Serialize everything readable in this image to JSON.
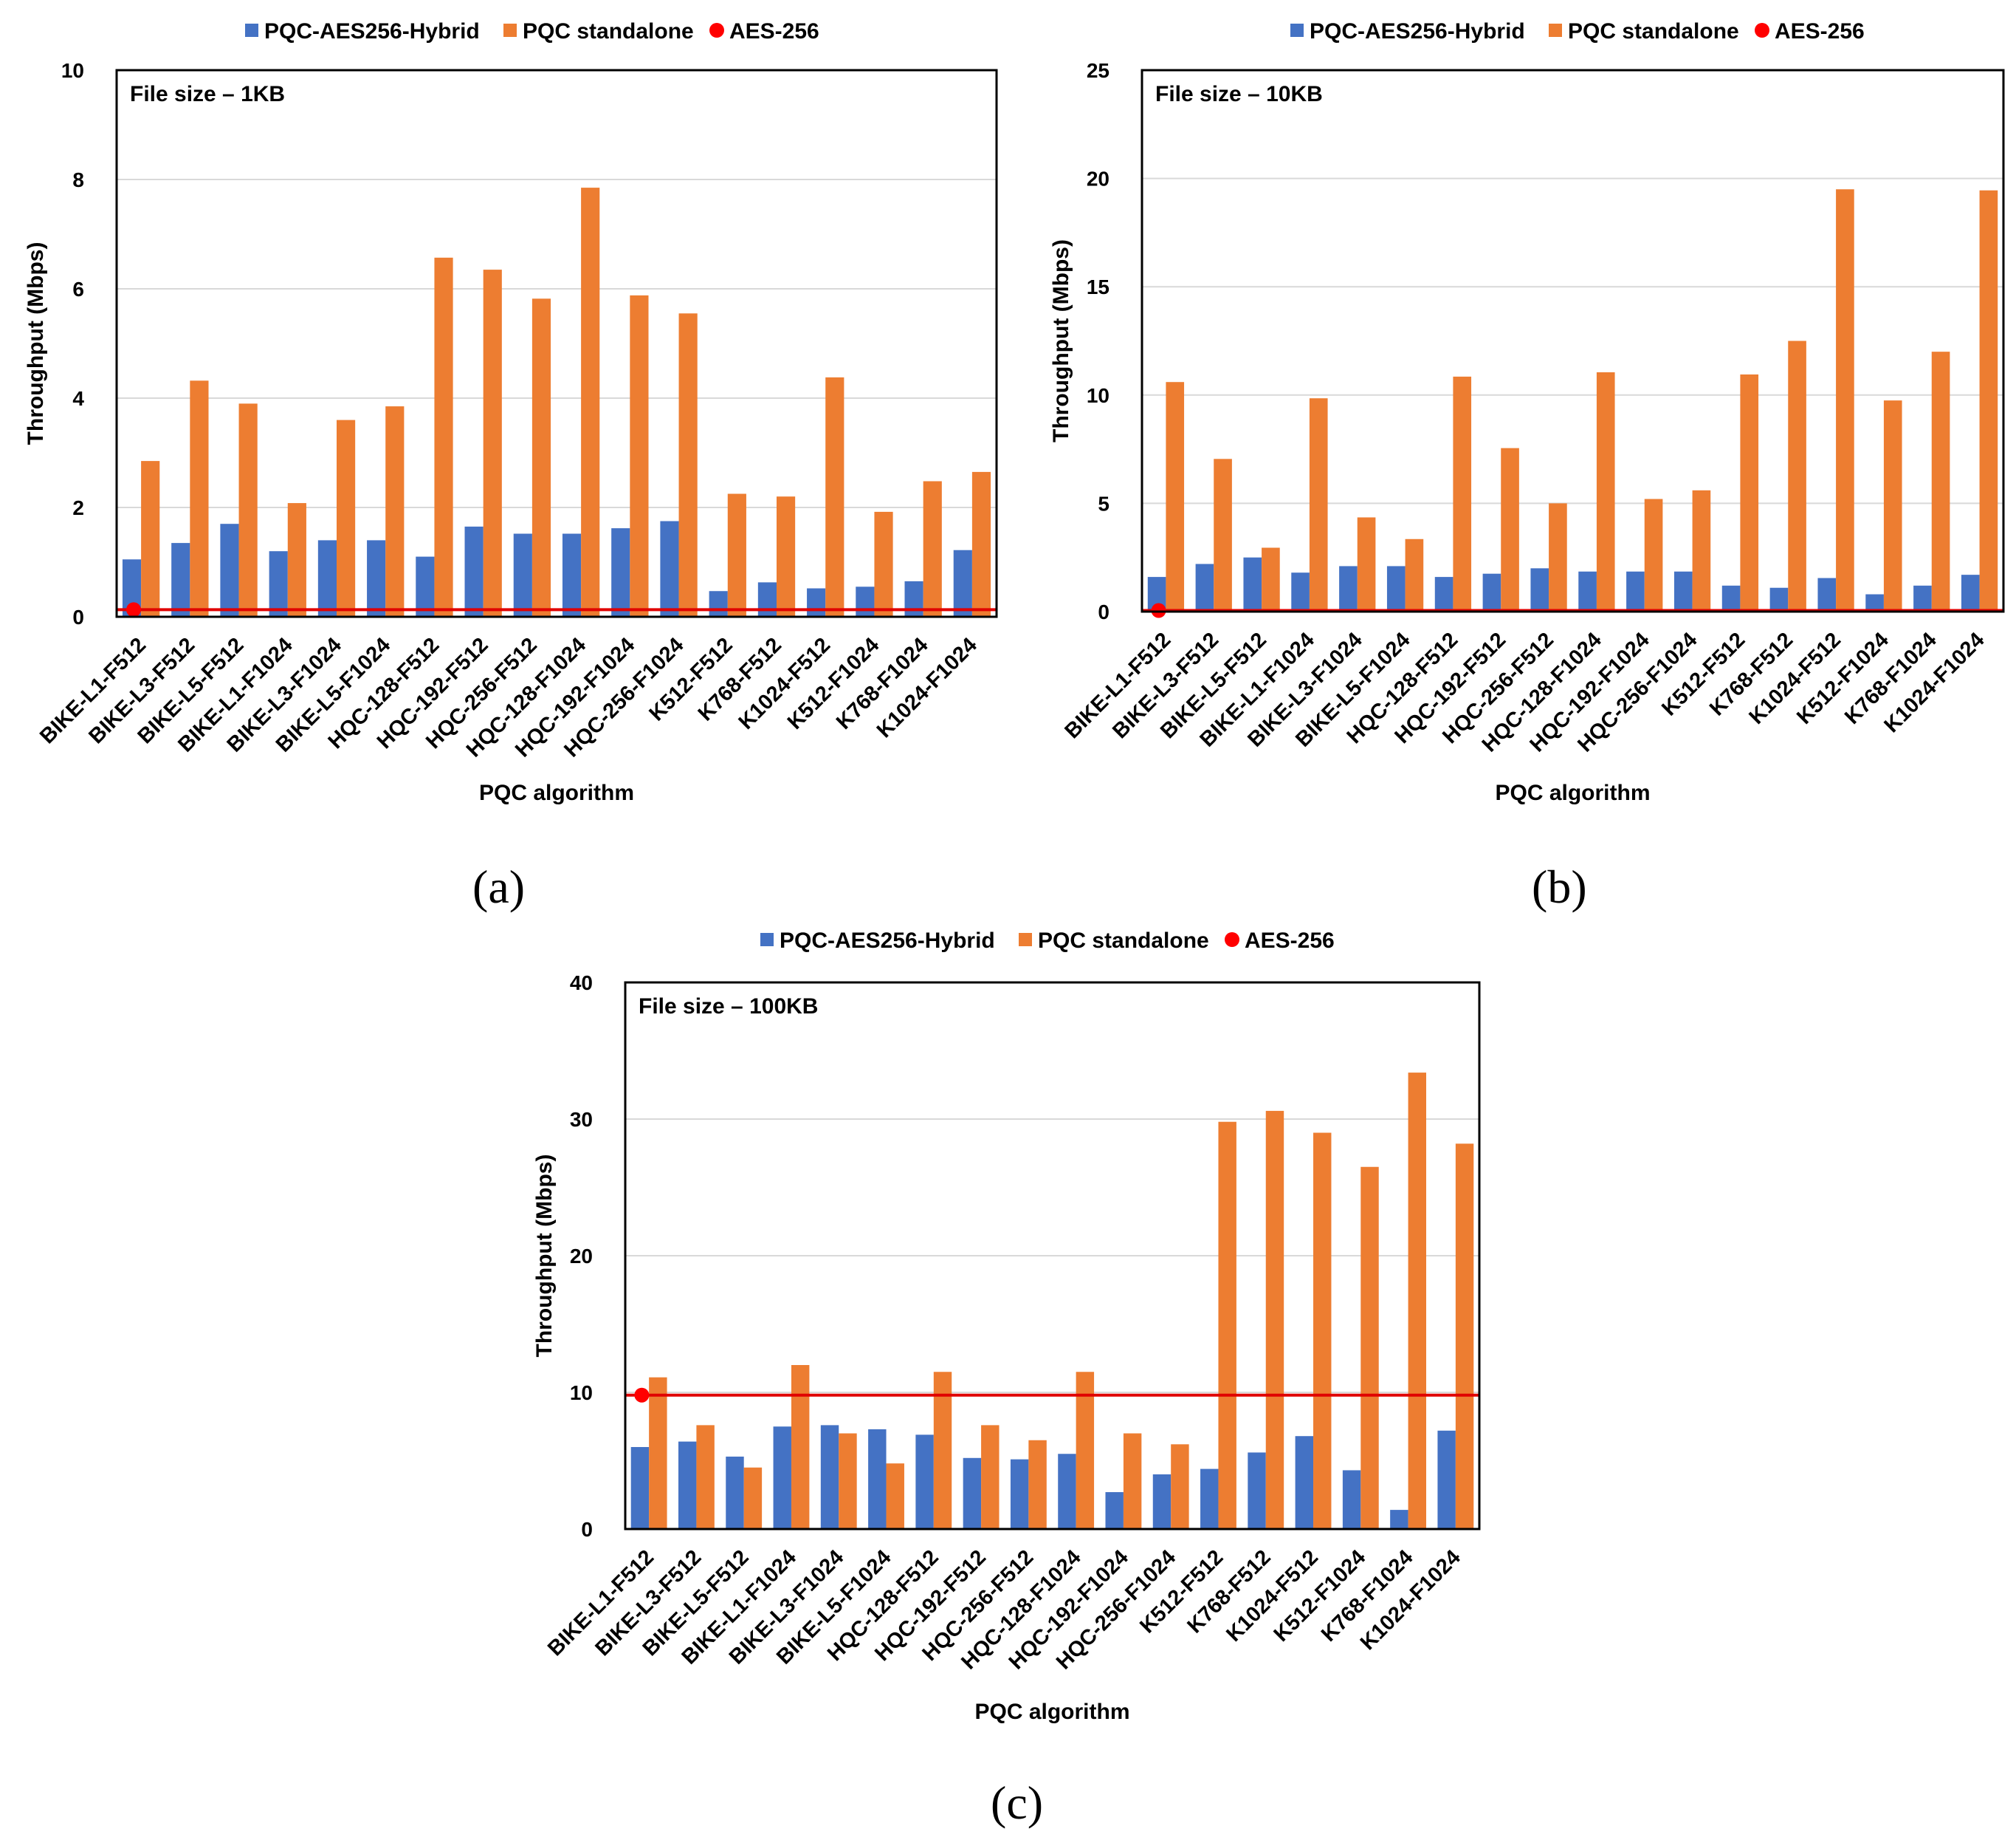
{
  "colors": {
    "hybrid": "#4472C4",
    "standalone": "#ED7D31",
    "aes": "#FF0000",
    "aes_line": "#E00000",
    "frame": "#000000",
    "grid": "#D9D9D9"
  },
  "chart_data": [
    {
      "type": "bar",
      "panel_label": "(a)",
      "annotation": "File size – 1KB",
      "xlabel": "PQC algorithm",
      "ylabel": "Throughput (Mbps)",
      "ylim": [
        0,
        10
      ],
      "yticks": [
        "0",
        "2",
        "4",
        "6",
        "8",
        "10"
      ],
      "ytick_values": [
        0,
        2,
        4,
        6,
        8,
        10
      ],
      "legend": [
        "PQC-AES256-Hybrid",
        "PQC standalone",
        "AES-256"
      ],
      "legend_position": "top-center",
      "categories": [
        "BIKE-L1-F512",
        "BIKE-L3-F512",
        "BIKE-L5-F512",
        "BIKE-L1-F1024",
        "BIKE-L3-F1024",
        "BIKE-L5-F1024",
        "HQC-128-F512",
        "HQC-192-F512",
        "HQC-256-F512",
        "HQC-128-F1024",
        "HQC-192-F1024",
        "HQC-256-F1024",
        "K512-F512",
        "K768-F512",
        "K1024-F512",
        "K512-F1024",
        "K768-F1024",
        "K1024-F1024"
      ],
      "series": [
        {
          "name": "PQC-AES256-Hybrid",
          "values": [
            1.05,
            1.35,
            1.7,
            1.2,
            1.4,
            1.4,
            1.1,
            1.65,
            1.52,
            1.52,
            1.62,
            1.75,
            0.47,
            0.63,
            0.52,
            0.55,
            0.65,
            1.22
          ]
        },
        {
          "name": "PQC standalone",
          "values": [
            2.85,
            4.32,
            3.9,
            2.08,
            3.6,
            3.85,
            6.57,
            6.35,
            5.82,
            7.85,
            5.88,
            5.55,
            2.25,
            2.2,
            4.38,
            1.92,
            2.48,
            2.65
          ]
        }
      ],
      "aes256": {
        "name": "AES-256",
        "value": 0.13
      }
    },
    {
      "type": "bar",
      "panel_label": "(b)",
      "annotation": "File size – 10KB",
      "xlabel": "PQC algorithm",
      "ylabel": "Throughput (Mbps)",
      "ylim": [
        0,
        25
      ],
      "yticks": [
        "0",
        "5",
        "10",
        "15",
        "20",
        "25"
      ],
      "ytick_values": [
        0,
        5,
        10,
        15,
        20,
        25
      ],
      "legend": [
        "PQC-AES256-Hybrid",
        "PQC standalone",
        "AES-256"
      ],
      "legend_position": "top-center",
      "categories": [
        "BIKE-L1-F512",
        "BIKE-L3-F512",
        "BIKE-L5-F512",
        "BIKE-L1-F1024",
        "BIKE-L3-F1024",
        "BIKE-L5-F1024",
        "HQC-128-F512",
        "HQC-192-F512",
        "HQC-256-F512",
        "HQC-128-F1024",
        "HQC-192-F1024",
        "HQC-256-F1024",
        "K512-F512",
        "K768-F512",
        "K1024-F512",
        "K512-F1024",
        "K768-F1024",
        "K1024-F1024"
      ],
      "series": [
        {
          "name": "PQC-AES256-Hybrid",
          "values": [
            1.6,
            2.2,
            2.5,
            1.8,
            2.1,
            2.1,
            1.6,
            1.75,
            2.0,
            1.85,
            1.85,
            1.85,
            1.2,
            1.1,
            1.55,
            0.8,
            1.2,
            1.7
          ]
        },
        {
          "name": "PQC standalone",
          "values": [
            10.6,
            7.05,
            2.95,
            9.85,
            4.35,
            3.35,
            10.85,
            7.55,
            5.0,
            11.05,
            5.2,
            5.6,
            10.95,
            12.5,
            19.5,
            9.75,
            12.0,
            19.45
          ]
        }
      ],
      "aes256": {
        "name": "AES-256",
        "value": 0.05
      }
    },
    {
      "type": "bar",
      "panel_label": "(c)",
      "annotation": "File size – 100KB",
      "xlabel": "PQC algorithm",
      "ylabel": "Throughput (Mbps)",
      "ylim": [
        0,
        40
      ],
      "yticks": [
        "0",
        "10",
        "20",
        "30",
        "40"
      ],
      "ytick_values": [
        0,
        10,
        20,
        30,
        40
      ],
      "legend": [
        "PQC-AES256-Hybrid",
        "PQC standalone",
        "AES-256"
      ],
      "legend_position": "top-center",
      "categories": [
        "BIKE-L1-F512",
        "BIKE-L3-F512",
        "BIKE-L5-F512",
        "BIKE-L1-F1024",
        "BIKE-L3-F1024",
        "BIKE-L5-F1024",
        "HQC-128-F512",
        "HQC-192-F512",
        "HQC-256-F512",
        "HQC-128-F1024",
        "HQC-192-F1024",
        "HQC-256-F1024",
        "K512-F512",
        "K768-F512",
        "K1024-F512",
        "K512-F1024",
        "K768-F1024",
        "K1024-F1024"
      ],
      "series": [
        {
          "name": "PQC-AES256-Hybrid",
          "values": [
            6.0,
            6.4,
            5.3,
            7.5,
            7.6,
            7.3,
            6.9,
            5.2,
            5.1,
            5.5,
            2.7,
            4.0,
            4.4,
            5.6,
            6.8,
            4.3,
            1.4,
            7.2
          ]
        },
        {
          "name": "PQC standalone",
          "values": [
            11.1,
            7.6,
            4.5,
            12.0,
            7.0,
            4.8,
            11.5,
            7.6,
            6.5,
            11.5,
            7.0,
            6.2,
            29.8,
            30.6,
            29.0,
            26.5,
            33.4,
            28.2
          ]
        }
      ],
      "aes256": {
        "name": "AES-256",
        "value": 9.8
      }
    }
  ]
}
